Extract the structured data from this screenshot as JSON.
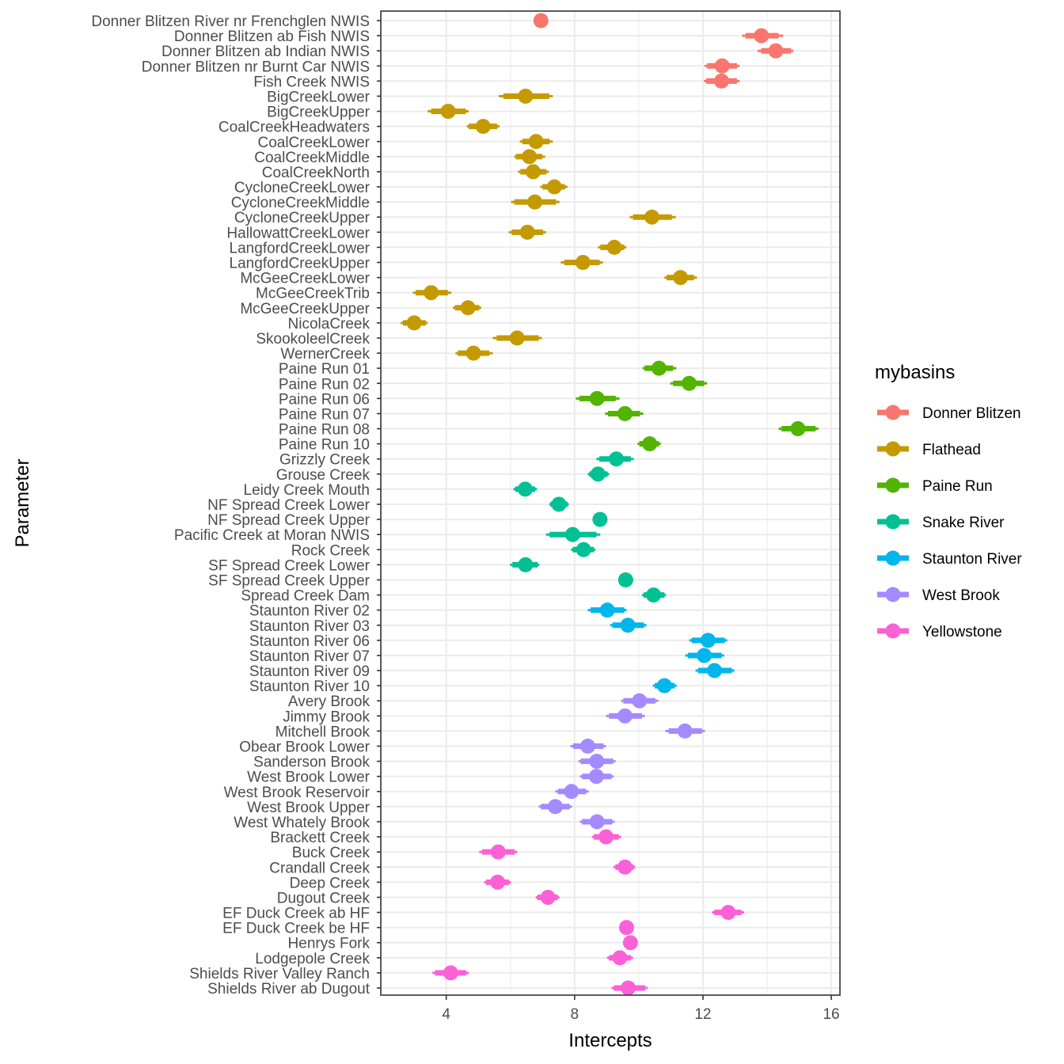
{
  "chart_data": {
    "type": "scatter",
    "subtype": "point-interval (coefficient plot)",
    "title": "",
    "xlabel": "Intercepts",
    "ylabel": "Parameter",
    "xlim": [
      1.96,
      16.27
    ],
    "xticks": [
      4,
      8,
      12,
      16
    ],
    "x_minor_grid": [
      2,
      6,
      10,
      14
    ],
    "grid": true,
    "legend": {
      "title": "mybasins",
      "placement": "right",
      "entries": [
        {
          "name": "Donner Blitzen",
          "color": "#F8766D"
        },
        {
          "name": "Flathead",
          "color": "#C49A00"
        },
        {
          "name": "Paine Run",
          "color": "#53B400"
        },
        {
          "name": "Snake River",
          "color": "#00C094"
        },
        {
          "name": "Staunton River",
          "color": "#00B6EB"
        },
        {
          "name": "West Brook",
          "color": "#A58AFF"
        },
        {
          "name": "Yellowstone",
          "color": "#FB61D7"
        }
      ]
    },
    "points": [
      {
        "label": "Donner Blitzen River nr Frenchglen NWIS",
        "basin": "Donner Blitzen",
        "estimate": 6.95,
        "outer": [
          6.8,
          7.1
        ],
        "inner": [
          6.82,
          7.08
        ]
      },
      {
        "label": "Donner Blitzen ab Fish NWIS",
        "basin": "Donner Blitzen",
        "estimate": 13.82,
        "outer": [
          13.22,
          14.5
        ],
        "inner": [
          13.33,
          14.36
        ]
      },
      {
        "label": "Donner Blitzen ab Indian NWIS",
        "basin": "Donner Blitzen",
        "estimate": 14.27,
        "outer": [
          13.7,
          14.82
        ],
        "inner": [
          13.81,
          14.75
        ]
      },
      {
        "label": "Donner Blitzen nr Burnt Car NWIS",
        "basin": "Donner Blitzen",
        "estimate": 12.6,
        "outer": [
          12.05,
          13.14
        ],
        "inner": [
          12.13,
          13.06
        ]
      },
      {
        "label": "Fish Creek NWIS",
        "basin": "Donner Blitzen",
        "estimate": 12.58,
        "outer": [
          12.03,
          13.14
        ],
        "inner": [
          12.1,
          13.06
        ]
      },
      {
        "label": "BigCreekLower",
        "basin": "Flathead",
        "estimate": 6.47,
        "outer": [
          5.64,
          7.32
        ],
        "inner": [
          5.78,
          7.21
        ]
      },
      {
        "label": "BigCreekUpper",
        "basin": "Flathead",
        "estimate": 4.06,
        "outer": [
          3.42,
          4.7
        ],
        "inner": [
          3.53,
          4.61
        ]
      },
      {
        "label": "CoalCreekHeadwaters",
        "basin": "Flathead",
        "estimate": 5.15,
        "outer": [
          4.64,
          5.66
        ],
        "inner": [
          4.7,
          5.59
        ]
      },
      {
        "label": "CoalCreekLower",
        "basin": "Flathead",
        "estimate": 6.8,
        "outer": [
          6.29,
          7.32
        ],
        "inner": [
          6.37,
          7.22
        ]
      },
      {
        "label": "CoalCreekMiddle",
        "basin": "Flathead",
        "estimate": 6.59,
        "outer": [
          6.12,
          7.08
        ],
        "inner": [
          6.17,
          6.99
        ]
      },
      {
        "label": "CoalCreekNorth",
        "basin": "Flathead",
        "estimate": 6.71,
        "outer": [
          6.24,
          7.2
        ],
        "inner": [
          6.31,
          7.12
        ]
      },
      {
        "label": "CycloneCreekLower",
        "basin": "Flathead",
        "estimate": 7.37,
        "outer": [
          6.93,
          7.78
        ],
        "inner": [
          7.0,
          7.7
        ]
      },
      {
        "label": "CycloneCreekMiddle",
        "basin": "Flathead",
        "estimate": 6.76,
        "outer": [
          6.02,
          7.53
        ],
        "inner": [
          6.12,
          7.42
        ]
      },
      {
        "label": "CycloneCreekUpper",
        "basin": "Flathead",
        "estimate": 10.41,
        "outer": [
          9.72,
          11.15
        ],
        "inner": [
          9.82,
          11.03
        ]
      },
      {
        "label": "HallowattCreekLower",
        "basin": "Flathead",
        "estimate": 6.53,
        "outer": [
          5.95,
          7.11
        ],
        "inner": [
          6.04,
          7.02
        ]
      },
      {
        "label": "LangfordCreekLower",
        "basin": "Flathead",
        "estimate": 9.24,
        "outer": [
          8.73,
          9.61
        ],
        "inner": [
          8.8,
          9.55
        ]
      },
      {
        "label": "LangfordCreekUpper",
        "basin": "Flathead",
        "estimate": 8.26,
        "outer": [
          7.57,
          8.88
        ],
        "inner": [
          7.68,
          8.78
        ]
      },
      {
        "label": "McGeeCreekLower",
        "basin": "Flathead",
        "estimate": 11.3,
        "outer": [
          10.8,
          11.81
        ],
        "inner": [
          10.87,
          11.72
        ]
      },
      {
        "label": "McGeeCreekTrib",
        "basin": "Flathead",
        "estimate": 3.53,
        "outer": [
          2.96,
          4.16
        ],
        "inner": [
          3.05,
          4.05
        ]
      },
      {
        "label": "McGeeCreekUpper",
        "basin": "Flathead",
        "estimate": 4.68,
        "outer": [
          4.21,
          5.09
        ],
        "inner": [
          4.27,
          5.03
        ]
      },
      {
        "label": "NicolaCreek",
        "basin": "Flathead",
        "estimate": 3.0,
        "outer": [
          2.58,
          3.42
        ],
        "inner": [
          2.65,
          3.36
        ]
      },
      {
        "label": "SkookoleelCreek",
        "basin": "Flathead",
        "estimate": 6.21,
        "outer": [
          5.45,
          6.98
        ],
        "inner": [
          5.57,
          6.88
        ]
      },
      {
        "label": "WernerCreek",
        "basin": "Flathead",
        "estimate": 4.85,
        "outer": [
          4.29,
          5.45
        ],
        "inner": [
          4.36,
          5.34
        ]
      },
      {
        "label": "Paine Run 01",
        "basin": "Paine Run",
        "estimate": 10.63,
        "outer": [
          10.12,
          11.17
        ],
        "inner": [
          10.18,
          11.07
        ]
      },
      {
        "label": "Paine Run 02",
        "basin": "Paine Run",
        "estimate": 11.57,
        "outer": [
          10.98,
          12.13
        ],
        "inner": [
          11.07,
          12.04
        ]
      },
      {
        "label": "Paine Run 06",
        "basin": "Paine Run",
        "estimate": 8.7,
        "outer": [
          8.04,
          9.4
        ],
        "inner": [
          8.15,
          9.28
        ]
      },
      {
        "label": "Paine Run 07",
        "basin": "Paine Run",
        "estimate": 9.57,
        "outer": [
          8.95,
          10.14
        ],
        "inner": [
          9.04,
          10.04
        ]
      },
      {
        "label": "Paine Run 08",
        "basin": "Paine Run",
        "estimate": 14.96,
        "outer": [
          14.36,
          15.6
        ],
        "inner": [
          14.45,
          15.51
        ]
      },
      {
        "label": "Paine Run 10",
        "basin": "Paine Run",
        "estimate": 10.34,
        "outer": [
          9.96,
          10.69
        ],
        "inner": [
          10.02,
          10.63
        ]
      },
      {
        "label": "Grizzly Creek",
        "basin": "Snake River",
        "estimate": 9.3,
        "outer": [
          8.68,
          9.84
        ],
        "inner": [
          8.77,
          9.75
        ]
      },
      {
        "label": "Grouse Creek",
        "basin": "Snake River",
        "estimate": 8.73,
        "outer": [
          8.41,
          9.08
        ],
        "inner": [
          8.46,
          9.03
        ]
      },
      {
        "label": "Leidy Creek Mouth",
        "basin": "Snake River",
        "estimate": 6.46,
        "outer": [
          6.09,
          6.83
        ],
        "inner": [
          6.15,
          6.77
        ]
      },
      {
        "label": "NF Spread Creek Lower",
        "basin": "Snake River",
        "estimate": 7.51,
        "outer": [
          7.21,
          7.82
        ],
        "inner": [
          7.25,
          7.78
        ]
      },
      {
        "label": "NF Spread Creek Upper",
        "basin": "Snake River",
        "estimate": 8.79,
        "outer": [
          8.56,
          9.02
        ],
        "inner": [
          8.58,
          9.0
        ]
      },
      {
        "label": "Pacific Creek at Moran NWIS",
        "basin": "Snake River",
        "estimate": 7.94,
        "outer": [
          7.11,
          8.8
        ],
        "inner": [
          7.22,
          8.68
        ]
      },
      {
        "label": "Rock Creek",
        "basin": "Snake River",
        "estimate": 8.28,
        "outer": [
          7.89,
          8.65
        ],
        "inner": [
          7.94,
          8.6
        ]
      },
      {
        "label": "SF Spread Creek Lower",
        "basin": "Snake River",
        "estimate": 6.47,
        "outer": [
          5.99,
          6.9
        ],
        "inner": [
          6.06,
          6.85
        ]
      },
      {
        "label": "SF Spread Creek Upper",
        "basin": "Snake River",
        "estimate": 9.59,
        "outer": [
          9.37,
          9.83
        ],
        "inner": [
          9.39,
          9.81
        ]
      },
      {
        "label": "Spread Creek Dam",
        "basin": "Snake River",
        "estimate": 10.46,
        "outer": [
          10.1,
          10.85
        ],
        "inner": [
          10.15,
          10.8
        ]
      },
      {
        "label": "Staunton River 02",
        "basin": "Staunton River",
        "estimate": 9.02,
        "outer": [
          8.41,
          9.62
        ],
        "inner": [
          8.5,
          9.55
        ]
      },
      {
        "label": "Staunton River 03",
        "basin": "Staunton River",
        "estimate": 9.66,
        "outer": [
          9.11,
          10.24
        ],
        "inner": [
          9.18,
          10.16
        ]
      },
      {
        "label": "Staunton River 06",
        "basin": "Staunton River",
        "estimate": 12.16,
        "outer": [
          11.57,
          12.76
        ],
        "inner": [
          11.65,
          12.68
        ]
      },
      {
        "label": "Staunton River 07",
        "basin": "Staunton River",
        "estimate": 12.04,
        "outer": [
          11.45,
          12.66
        ],
        "inner": [
          11.53,
          12.58
        ]
      },
      {
        "label": "Staunton River 09",
        "basin": "Staunton River",
        "estimate": 12.36,
        "outer": [
          11.77,
          12.98
        ],
        "inner": [
          11.85,
          12.9
        ]
      },
      {
        "label": "Staunton River 10",
        "basin": "Staunton River",
        "estimate": 10.8,
        "outer": [
          10.44,
          11.18
        ],
        "inner": [
          10.5,
          11.12
        ]
      },
      {
        "label": "Avery Brook",
        "basin": "West Brook",
        "estimate": 10.02,
        "outer": [
          9.45,
          10.61
        ],
        "inner": [
          9.52,
          10.52
        ]
      },
      {
        "label": "Jimmy Brook",
        "basin": "West Brook",
        "estimate": 9.57,
        "outer": [
          8.98,
          10.19
        ],
        "inner": [
          9.07,
          10.1
        ]
      },
      {
        "label": "Mitchell Brook",
        "basin": "West Brook",
        "estimate": 11.44,
        "outer": [
          10.83,
          12.06
        ],
        "inner": [
          10.93,
          11.97
        ]
      },
      {
        "label": "Obear Brook Lower",
        "basin": "West Brook",
        "estimate": 8.41,
        "outer": [
          7.87,
          8.98
        ],
        "inner": [
          7.95,
          8.9
        ]
      },
      {
        "label": "Sanderson Brook",
        "basin": "West Brook",
        "estimate": 8.69,
        "outer": [
          8.12,
          9.28
        ],
        "inner": [
          8.19,
          9.2
        ]
      },
      {
        "label": "West Brook Lower",
        "basin": "West Brook",
        "estimate": 8.68,
        "outer": [
          8.16,
          9.22
        ],
        "inner": [
          8.23,
          9.15
        ]
      },
      {
        "label": "West Brook Reservoir",
        "basin": "West Brook",
        "estimate": 7.9,
        "outer": [
          7.4,
          8.44
        ],
        "inner": [
          7.48,
          8.36
        ]
      },
      {
        "label": "West Brook Upper",
        "basin": "West Brook",
        "estimate": 7.4,
        "outer": [
          6.88,
          7.92
        ],
        "inner": [
          6.95,
          7.85
        ]
      },
      {
        "label": "West Whately Brook",
        "basin": "West Brook",
        "estimate": 8.7,
        "outer": [
          8.16,
          9.25
        ],
        "inner": [
          8.23,
          9.17
        ]
      },
      {
        "label": "Brackett Creek",
        "basin": "Yellowstone",
        "estimate": 8.98,
        "outer": [
          8.54,
          9.45
        ],
        "inner": [
          8.6,
          9.38
        ]
      },
      {
        "label": "Buck Creek",
        "basin": "Yellowstone",
        "estimate": 5.62,
        "outer": [
          5.03,
          6.21
        ],
        "inner": [
          5.12,
          6.13
        ]
      },
      {
        "label": "Crandall Creek",
        "basin": "Yellowstone",
        "estimate": 9.57,
        "outer": [
          9.21,
          9.89
        ],
        "inner": [
          9.27,
          9.84
        ]
      },
      {
        "label": "Deep Creek",
        "basin": "Yellowstone",
        "estimate": 5.6,
        "outer": [
          5.18,
          6.02
        ],
        "inner": [
          5.24,
          5.96
        ]
      },
      {
        "label": "Dugout Creek",
        "basin": "Yellowstone",
        "estimate": 7.17,
        "outer": [
          6.79,
          7.53
        ],
        "inner": [
          6.84,
          7.48
        ]
      },
      {
        "label": "EF Duck Creek ab HF",
        "basin": "Yellowstone",
        "estimate": 12.79,
        "outer": [
          12.28,
          13.28
        ],
        "inner": [
          12.35,
          13.2
        ]
      },
      {
        "label": "EF Duck Creek be HF",
        "basin": "Yellowstone",
        "estimate": 9.62,
        "outer": [
          9.5,
          9.74
        ],
        "inner": [
          9.52,
          9.72
        ]
      },
      {
        "label": "Henrys Fork",
        "basin": "Yellowstone",
        "estimate": 9.74,
        "outer": [
          9.63,
          9.86
        ],
        "inner": [
          9.65,
          9.84
        ]
      },
      {
        "label": "Lodgepole Creek",
        "basin": "Yellowstone",
        "estimate": 9.41,
        "outer": [
          9.01,
          9.82
        ],
        "inner": [
          9.07,
          9.76
        ]
      },
      {
        "label": "Shields River Valley Ranch",
        "basin": "Yellowstone",
        "estimate": 4.14,
        "outer": [
          3.57,
          4.7
        ],
        "inner": [
          3.65,
          4.62
        ]
      },
      {
        "label": "Shields River ab Dugout",
        "basin": "Yellowstone",
        "estimate": 9.67,
        "outer": [
          9.15,
          10.28
        ],
        "inner": [
          9.22,
          10.2
        ]
      }
    ]
  }
}
